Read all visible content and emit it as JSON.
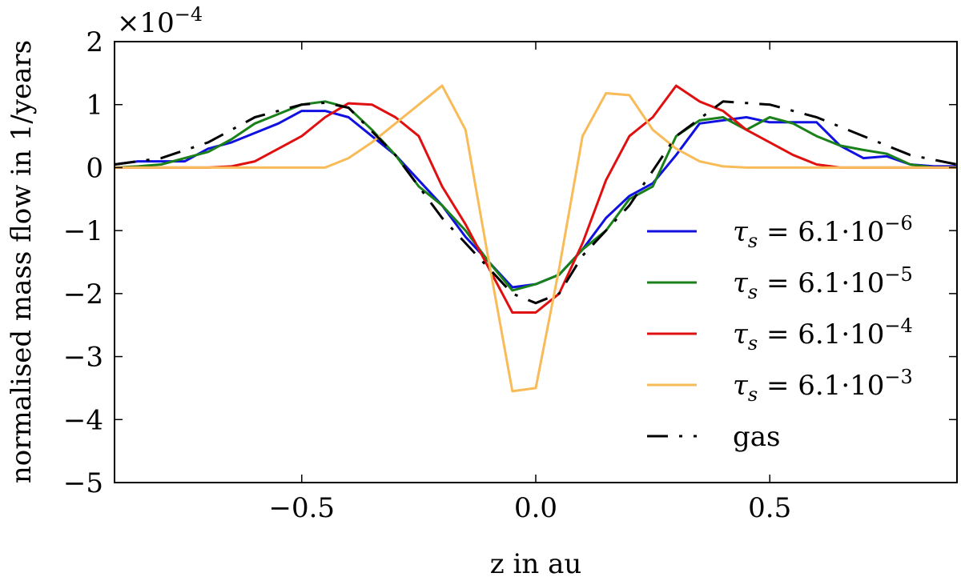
{
  "chart_data": {
    "type": "line",
    "title": "",
    "xlabel": "z in au",
    "ylabel": "normalised mass flow in 1/years",
    "scale_label": {
      "base": "×10",
      "exponent": "−4"
    },
    "xlim": [
      -0.9,
      0.9
    ],
    "ylim": [
      -5,
      2
    ],
    "xticks": [
      {
        "value": -0.5,
        "label": "−0.5"
      },
      {
        "value": 0.0,
        "label": "0.0"
      },
      {
        "value": 0.5,
        "label": "0.5"
      }
    ],
    "yticks": [
      {
        "value": 2,
        "label": "2"
      },
      {
        "value": 1,
        "label": "1"
      },
      {
        "value": 0,
        "label": "0"
      },
      {
        "value": -1,
        "label": "−1"
      },
      {
        "value": -2,
        "label": "−2"
      },
      {
        "value": -3,
        "label": "−3"
      },
      {
        "value": -4,
        "label": "−4"
      },
      {
        "value": -5,
        "label": "−5"
      }
    ],
    "legend_position": "lower-right",
    "series": [
      {
        "name": "tau-6e-6",
        "label": {
          "sym": "τ",
          "sub": "s",
          "eq": " = 6.1·10",
          "exp": "−6"
        },
        "color": "#1010e0",
        "dash": "solid",
        "x": [
          -0.9,
          -0.85,
          -0.8,
          -0.75,
          -0.7,
          -0.65,
          -0.6,
          -0.55,
          -0.5,
          -0.45,
          -0.4,
          -0.35,
          -0.3,
          -0.25,
          -0.2,
          -0.15,
          -0.1,
          -0.05,
          0.0,
          0.05,
          0.1,
          0.15,
          0.2,
          0.25,
          0.3,
          0.35,
          0.4,
          0.45,
          0.5,
          0.55,
          0.6,
          0.65,
          0.7,
          0.75,
          0.8,
          0.85,
          0.9
        ],
        "y": [
          0.05,
          0.1,
          0.1,
          0.1,
          0.3,
          0.4,
          0.55,
          0.7,
          0.9,
          0.9,
          0.8,
          0.5,
          0.2,
          -0.2,
          -0.6,
          -1.1,
          -1.5,
          -1.9,
          -1.85,
          -1.7,
          -1.3,
          -0.8,
          -0.45,
          -0.25,
          0.2,
          0.7,
          0.75,
          0.8,
          0.72,
          0.72,
          0.72,
          0.35,
          0.15,
          0.18,
          0.05,
          0.02,
          0.02
        ]
      },
      {
        "name": "tau-6e-5",
        "label": {
          "sym": "τ",
          "sub": "s",
          "eq": " = 6.1·10",
          "exp": "−5"
        },
        "color": "#1a801a",
        "dash": "solid",
        "x": [
          -0.9,
          -0.85,
          -0.8,
          -0.75,
          -0.7,
          -0.65,
          -0.6,
          -0.55,
          -0.5,
          -0.45,
          -0.4,
          -0.35,
          -0.3,
          -0.25,
          -0.2,
          -0.15,
          -0.1,
          -0.05,
          0.0,
          0.05,
          0.1,
          0.15,
          0.2,
          0.25,
          0.3,
          0.35,
          0.4,
          0.45,
          0.5,
          0.55,
          0.6,
          0.65,
          0.7,
          0.75,
          0.8,
          0.85,
          0.9
        ],
        "y": [
          0.0,
          0.02,
          0.05,
          0.15,
          0.25,
          0.45,
          0.7,
          0.85,
          1.0,
          1.05,
          0.95,
          0.6,
          0.2,
          -0.3,
          -0.6,
          -1.0,
          -1.5,
          -1.95,
          -1.85,
          -1.7,
          -1.3,
          -1.0,
          -0.5,
          -0.3,
          0.5,
          0.75,
          0.8,
          0.6,
          0.8,
          0.7,
          0.5,
          0.35,
          0.28,
          0.22,
          0.05,
          0.0,
          0.0
        ]
      },
      {
        "name": "tau-6e-4",
        "label": {
          "sym": "τ",
          "sub": "s",
          "eq": " = 6.1·10",
          "exp": "−4"
        },
        "color": "#e01010",
        "dash": "solid",
        "x": [
          -0.9,
          -0.8,
          -0.7,
          -0.65,
          -0.6,
          -0.55,
          -0.5,
          -0.45,
          -0.4,
          -0.35,
          -0.3,
          -0.25,
          -0.2,
          -0.15,
          -0.1,
          -0.05,
          0.0,
          0.05,
          0.1,
          0.15,
          0.2,
          0.25,
          0.3,
          0.35,
          0.4,
          0.45,
          0.5,
          0.55,
          0.6,
          0.65,
          0.7,
          0.75,
          0.8,
          0.9
        ],
        "y": [
          0.0,
          0.0,
          0.0,
          0.02,
          0.1,
          0.3,
          0.5,
          0.8,
          1.02,
          1.0,
          0.8,
          0.5,
          -0.3,
          -0.9,
          -1.6,
          -2.3,
          -2.3,
          -2.0,
          -1.2,
          -0.2,
          0.5,
          0.8,
          1.3,
          1.05,
          0.9,
          0.6,
          0.4,
          0.2,
          0.05,
          0.0,
          0.0,
          0.0,
          0.0,
          0.0
        ]
      },
      {
        "name": "tau-6e-3",
        "label": {
          "sym": "τ",
          "sub": "s",
          "eq": " = 6.1·10",
          "exp": "−3"
        },
        "color": "#f8bb58",
        "dash": "solid",
        "x": [
          -0.9,
          -0.5,
          -0.45,
          -0.4,
          -0.35,
          -0.3,
          -0.25,
          -0.2,
          -0.15,
          -0.1,
          -0.05,
          0.0,
          0.05,
          0.1,
          0.15,
          0.2,
          0.25,
          0.3,
          0.35,
          0.4,
          0.45,
          0.5,
          0.9
        ],
        "y": [
          0.0,
          0.0,
          0.0,
          0.15,
          0.4,
          0.7,
          1.0,
          1.3,
          0.6,
          -1.5,
          -3.55,
          -3.5,
          -1.6,
          0.5,
          1.18,
          1.15,
          0.6,
          0.3,
          0.1,
          0.02,
          0.0,
          0.0,
          0.0
        ]
      },
      {
        "name": "gas",
        "label": {
          "sym": "",
          "sub": "",
          "eq": "gas",
          "exp": ""
        },
        "color": "#000000",
        "dash": "dashdot",
        "x": [
          -0.9,
          -0.8,
          -0.7,
          -0.6,
          -0.5,
          -0.45,
          -0.4,
          -0.3,
          -0.2,
          -0.1,
          -0.05,
          0.0,
          0.05,
          0.1,
          0.2,
          0.3,
          0.4,
          0.5,
          0.6,
          0.7,
          0.8,
          0.9
        ],
        "y": [
          0.05,
          0.15,
          0.4,
          0.8,
          1.0,
          1.03,
          0.95,
          0.2,
          -0.8,
          -1.6,
          -2.0,
          -2.15,
          -2.0,
          -1.4,
          -0.6,
          0.5,
          1.05,
          1.0,
          0.8,
          0.5,
          0.2,
          0.05
        ]
      }
    ]
  }
}
